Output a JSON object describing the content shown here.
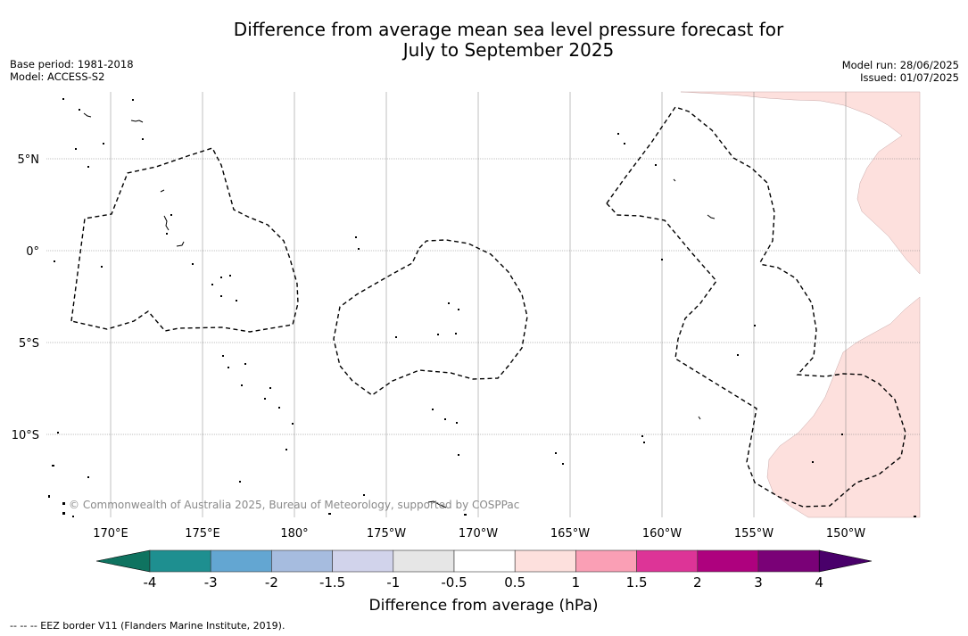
{
  "title_line1": "Difference from average mean sea level pressure forecast for",
  "title_line2": "July to September 2025",
  "base_period": "Base period: 1981-2018",
  "model": "Model: ACCESS-S2",
  "model_run": "Model run: 28/06/2025",
  "issued": "Issued: 01/07/2025",
  "copyright": "© Commonwealth of Australia 2025, Bureau of Meteorology, supported by COSPPac",
  "map": {
    "lon_labels": [
      "170°E",
      "175°E",
      "180°",
      "175°W",
      "170°W",
      "165°W",
      "160°W",
      "155°W",
      "150°W"
    ],
    "lat_labels": [
      "5°N",
      "0°",
      "5°S",
      "10°S"
    ],
    "colors": {
      "land": "#000000",
      "eez_border": "#000000",
      "anomaly_0_5_to_1": "#fde0dd",
      "gridline": "#808080"
    }
  },
  "colorbar": {
    "title": "Difference from average (hPa)",
    "boundaries": [
      "-4",
      "-3",
      "-2",
      "-1.5",
      "-1",
      "-0.5",
      "0.5",
      "1",
      "1.5",
      "2",
      "3",
      "4"
    ],
    "colors": [
      "#1e8f90",
      "#63a6d2",
      "#a6bcdf",
      "#d1d3eb",
      "#e6e6e6",
      "#ffffff",
      "#fde0dd",
      "#fa9fb5",
      "#dd3497",
      "#ae017e",
      "#7a0177"
    ],
    "under_color": "#0f7360",
    "over_color": "#49006a"
  },
  "footnote": "-- -- -- EEZ border V11 (Flanders Marine Institute, 2019)."
}
